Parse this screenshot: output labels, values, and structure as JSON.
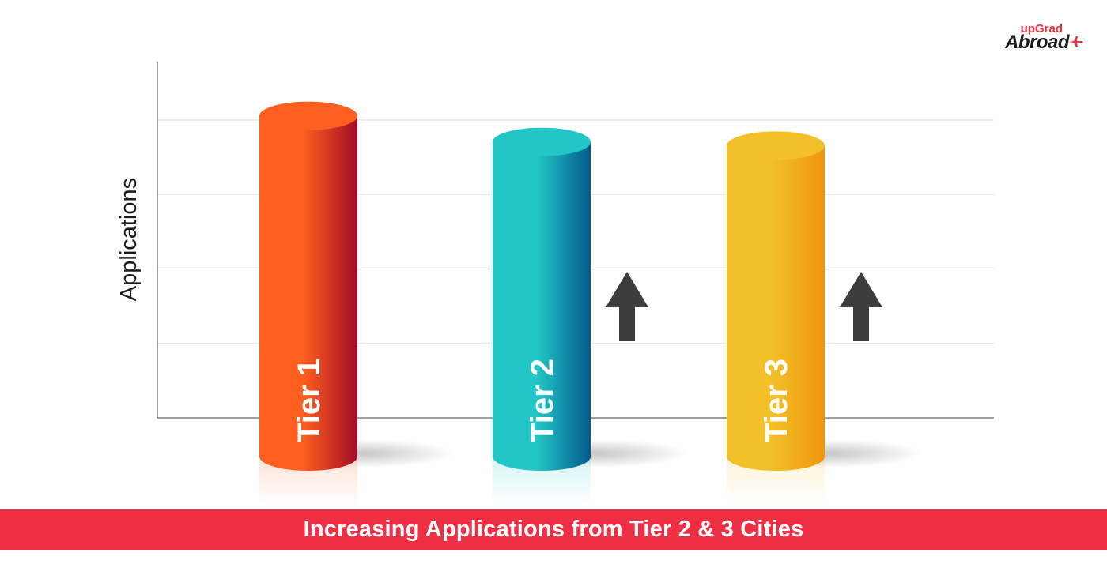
{
  "brand": {
    "top": "upGrad",
    "main": "Abroad",
    "icon": "plane-icon"
  },
  "banner": {
    "text": "Increasing Applications from Tier 2 & 3 Cities"
  },
  "chart_data": {
    "type": "bar",
    "style": "3d-cylinder",
    "title": "",
    "xlabel": "",
    "ylabel": "Applications",
    "categories": [
      "Tier 1",
      "Tier 2",
      "Tier 3"
    ],
    "values": [
      3.95,
      3.6,
      3.55
    ],
    "ylim": [
      0,
      4.8
    ],
    "grid": true,
    "gridlines": [
      1,
      2,
      3,
      4
    ],
    "trend_arrows": [
      {
        "category": "Tier 2",
        "direction": "up",
        "icon": "up-arrow-icon"
      },
      {
        "category": "Tier 3",
        "direction": "up",
        "icon": "up-arrow-icon"
      }
    ],
    "colors": {
      "Tier 1": [
        "#fe5e1e",
        "#a20c28"
      ],
      "Tier 2": [
        "#22c6c6",
        "#045a8d"
      ],
      "Tier 3": [
        "#f3c02a",
        "#f0960a"
      ],
      "arrow": "#3d3d3d",
      "grid": "#e2e2e2",
      "axis": "#666666"
    }
  }
}
